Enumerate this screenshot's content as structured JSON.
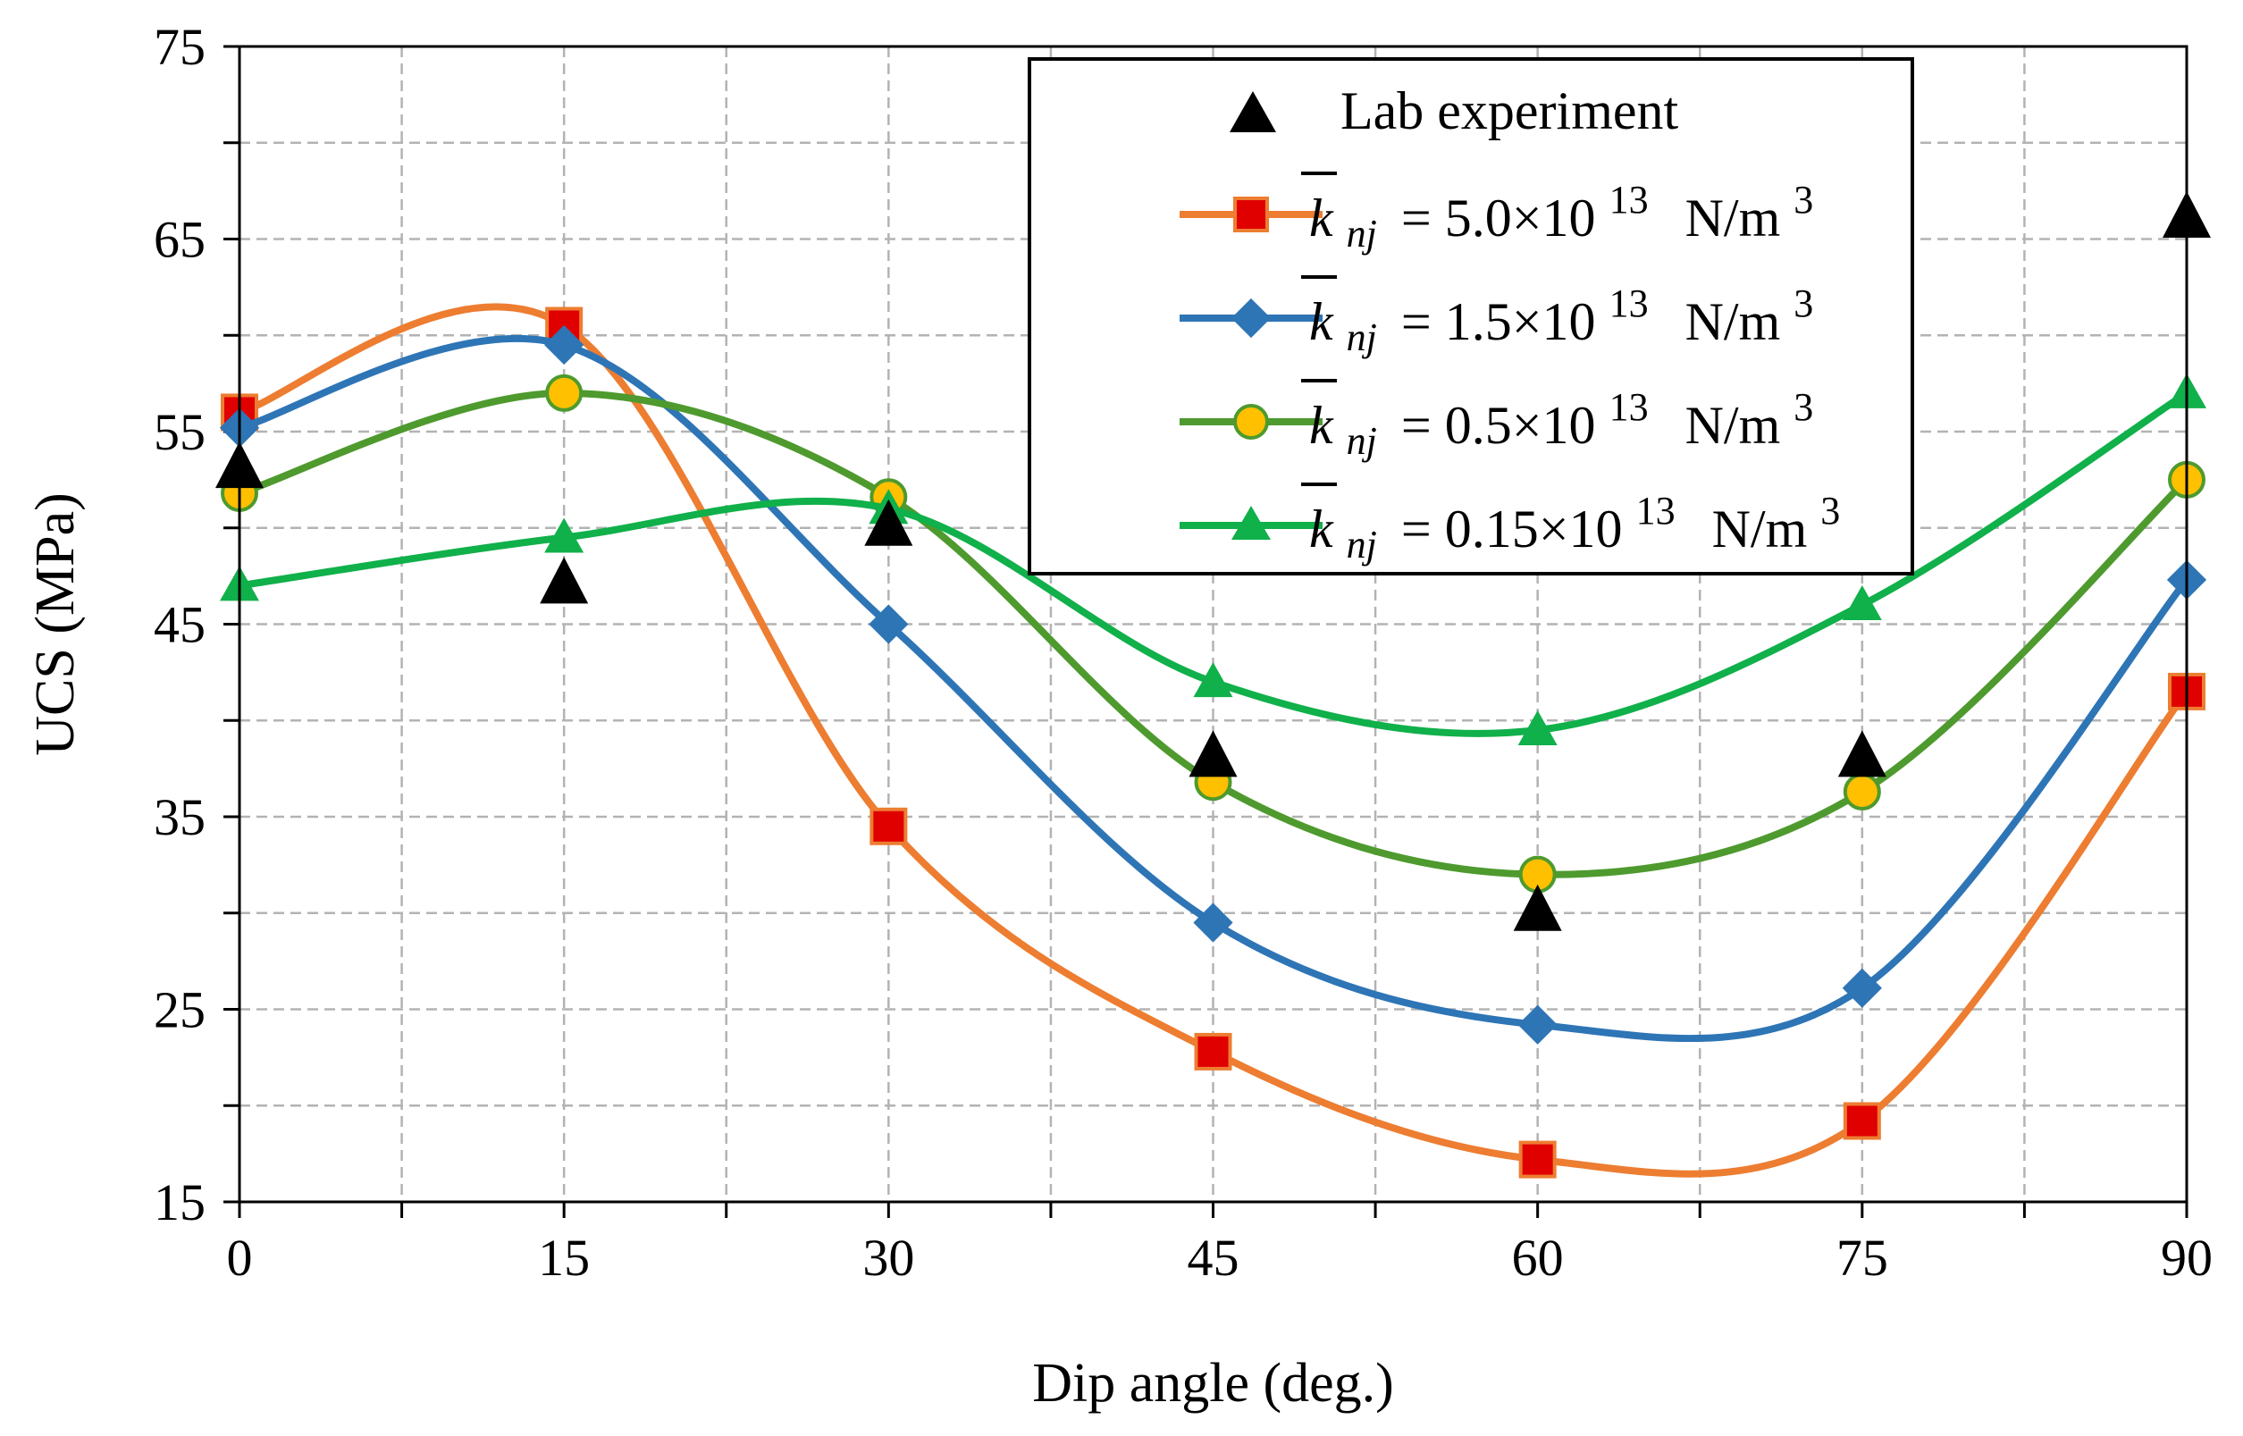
{
  "chart_data": {
    "type": "line",
    "xlabel": "Dip angle (deg.)",
    "ylabel": "UCS (MPa)",
    "x": [
      0,
      15,
      30,
      45,
      60,
      75,
      90
    ],
    "xticks": [
      "0",
      "15",
      "30",
      "45",
      "60",
      "75",
      "90"
    ],
    "yticks": [
      "15",
      "25",
      "35",
      "45",
      "55",
      "65",
      "75"
    ],
    "xlim": [
      0,
      90
    ],
    "ylim": [
      15,
      75
    ],
    "grid": true,
    "legend_position": "top-right",
    "lab": {
      "name": "Lab experiment",
      "marker": "triangle",
      "color": "#000000",
      "values": [
        53,
        47,
        50,
        38,
        30,
        38,
        66
      ]
    },
    "series": [
      {
        "name_sym": "k",
        "name_sub": "nj",
        "name_eq": "= 5.0×10",
        "name_exp": "13",
        "name_unit": "N/m",
        "name_unit_exp": "3",
        "color": "#ED7D31",
        "marker": "square",
        "marker_fill": "#E00000",
        "values": [
          56,
          60.5,
          34.5,
          22.8,
          17.2,
          19.2,
          41.5
        ]
      },
      {
        "name_sym": "k",
        "name_sub": "nj",
        "name_eq": "= 1.5×10",
        "name_exp": "13",
        "name_unit": "N/m",
        "name_unit_exp": "3",
        "color": "#2E75B6",
        "marker": "diamond",
        "marker_fill": "#2E75B6",
        "values": [
          55.2,
          59.5,
          45,
          29.5,
          24.2,
          26.1,
          47.3
        ]
      },
      {
        "name_sym": "k",
        "name_sub": "nj",
        "name_eq": "= 0.5×10",
        "name_exp": "13",
        "name_unit": "N/m",
        "name_unit_exp": "3",
        "color": "#4E9A2E",
        "marker": "circle",
        "marker_fill": "#FFC000",
        "values": [
          51.8,
          57,
          51.6,
          36.8,
          32,
          36.3,
          52.5
        ]
      },
      {
        "name_sym": "k",
        "name_sub": "nj",
        "name_eq": "= 0.15×10",
        "name_exp": "13",
        "name_unit": "N/m",
        "name_unit_exp": "3",
        "color": "#10B04A",
        "marker": "triangle",
        "marker_fill": "#10B04A",
        "values": [
          47,
          49.5,
          51,
          42,
          39.5,
          46,
          57
        ]
      }
    ]
  }
}
